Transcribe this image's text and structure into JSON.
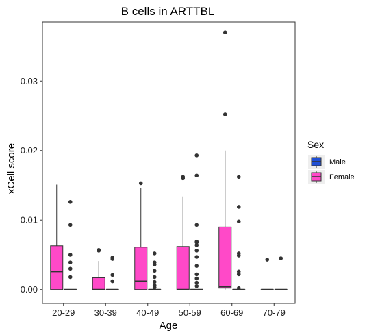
{
  "chart_data": {
    "type": "boxplot",
    "title": "B cells in ARTTBL",
    "xlabel": "Age",
    "ylabel": "xCell score",
    "ylim": [
      -0.002,
      0.0385
    ],
    "yticks": [
      0.0,
      0.01,
      0.02,
      0.03
    ],
    "ytick_labels": [
      "0.00",
      "0.01",
      "0.02",
      "0.03"
    ],
    "grid": false,
    "legend": {
      "title": "Sex",
      "placement": "right",
      "entries": [
        {
          "name": "Male",
          "color": "#1f4fd6"
        },
        {
          "name": "Female",
          "color": "#ff49c8"
        }
      ]
    },
    "categories": [
      "20-29",
      "30-39",
      "40-49",
      "50-59",
      "60-69",
      "70-79"
    ],
    "boxes": [
      {
        "category": "20-29",
        "q1": 0.0,
        "median": 0.0026,
        "q3": 0.0063,
        "whisker_low": 0.0,
        "whisker_high": 0.0151,
        "outliers": []
      },
      {
        "category": "20-29",
        "q1": 0.0,
        "median": 0.0,
        "q3": 0.0,
        "whisker_low": 0.0,
        "whisker_high": 0.0,
        "outliers": [
          0.0126,
          0.0093,
          0.005,
          0.0039,
          0.003,
          0.0018
        ]
      },
      {
        "category": "30-39",
        "q1": 0.0,
        "median": 0.0,
        "q3": 0.0017,
        "whisker_low": 0.0,
        "whisker_high": 0.0041,
        "outliers": [
          0.0057,
          0.0056
        ]
      },
      {
        "category": "30-39",
        "q1": 0.0,
        "median": 0.0,
        "q3": 0.0,
        "whisker_low": 0.0,
        "whisker_high": 0.0,
        "outliers": [
          0.0046,
          0.0044,
          0.0021,
          0.0012
        ]
      },
      {
        "category": "40-49",
        "q1": 0.0,
        "median": 0.0012,
        "q3": 0.0061,
        "whisker_low": 0.0,
        "whisker_high": 0.0146,
        "outliers": [
          0.0153
        ]
      },
      {
        "category": "40-49",
        "q1": 0.0,
        "median": 0.0,
        "q3": 0.0,
        "whisker_low": 0.0,
        "whisker_high": 0.0,
        "outliers": [
          0.0052,
          0.0039,
          0.0036,
          0.0027,
          0.0018,
          0.0011,
          0.0006,
          0.0003
        ]
      },
      {
        "category": "50-59",
        "q1": 0.0,
        "median": 0.0,
        "q3": 0.0062,
        "whisker_low": 0.0,
        "whisker_high": 0.0134,
        "outliers": [
          0.0162,
          0.016
        ]
      },
      {
        "category": "50-59",
        "q1": 0.0,
        "median": 0.0,
        "q3": 0.0,
        "whisker_low": 0.0,
        "whisker_high": 0.0,
        "outliers": [
          0.0193,
          0.0164,
          0.0093,
          0.0069,
          0.0068,
          0.0064,
          0.0056,
          0.0047,
          0.0034,
          0.0022,
          0.0016,
          0.001,
          0.0005
        ]
      },
      {
        "category": "60-69",
        "q1": 0.0002,
        "median": 0.0004,
        "q3": 0.009,
        "whisker_low": 0.0,
        "whisker_high": 0.02,
        "outliers": [
          0.037,
          0.0252
        ]
      },
      {
        "category": "60-69",
        "q1": 0.0,
        "median": 0.0,
        "q3": 0.0,
        "whisker_low": 0.0,
        "whisker_high": 0.0,
        "outliers": [
          0.0162,
          0.0119,
          0.0098,
          0.0052,
          0.0049,
          0.0026,
          0.0022,
          0.0002
        ]
      },
      {
        "category": "70-79",
        "q1": 0.0,
        "median": 0.0,
        "q3": 0.0,
        "whisker_low": 0.0,
        "whisker_high": 0.0,
        "outliers": [
          0.0043
        ]
      },
      {
        "category": "70-79",
        "q1": 0.0,
        "median": 0.0,
        "q3": 0.0,
        "whisker_low": 0.0,
        "whisker_high": 0.0,
        "outliers": [
          0.0045
        ]
      }
    ],
    "box_fill": "#ff49c8"
  }
}
